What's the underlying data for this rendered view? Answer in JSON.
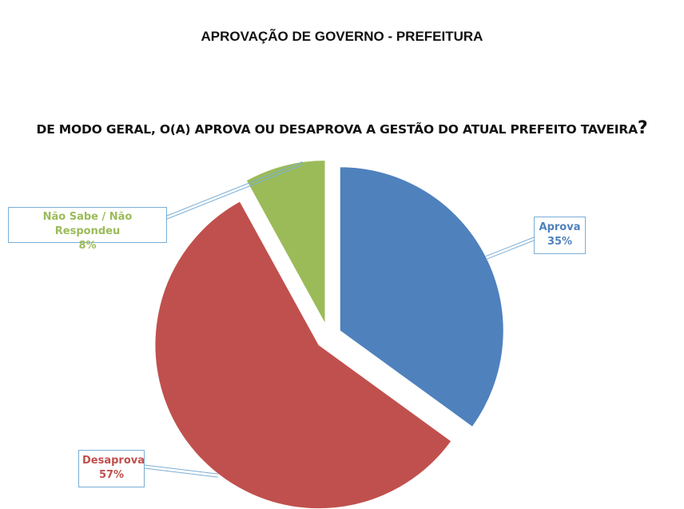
{
  "title": "APROVAÇÃO DE GOVERNO - PREFEITURA",
  "question": "DE MODO GERAL, O(A) APROVA OU DESAPROVA A GESTÃO DO ATUAL PREFEITO TAVEIRA",
  "question_mark": "?",
  "chart_data": {
    "type": "pie",
    "title": "APROVAÇÃO DE GOVERNO - PREFEITURA",
    "subtitle": "DE MODO GERAL, O(A) APROVA OU DESAPROVA A GESTÃO DO ATUAL PREFEITO TAVEIRA?",
    "slices": [
      {
        "label": "Aprova",
        "value": 35,
        "value_label": "35%",
        "color": "#4f81bd"
      },
      {
        "label": "Desaprova",
        "value": 57,
        "value_label": "57%",
        "color": "#c0504d"
      },
      {
        "label": "Não Sabe / Não Respondeu",
        "value": 8,
        "value_label": "8%",
        "color": "#9bbb59"
      }
    ],
    "exploded": true,
    "legend": "none"
  }
}
